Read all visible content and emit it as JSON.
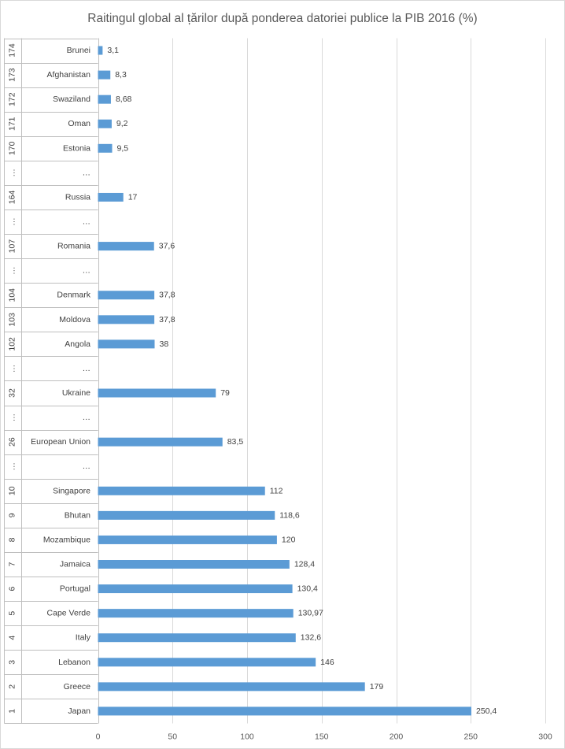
{
  "chart_data": {
    "type": "bar",
    "orientation": "horizontal",
    "title": "Raitingul global al țărilor după ponderea datoriei publice la PIB 2016 (%)",
    "xlim": [
      0,
      300
    ],
    "xticks": [
      0,
      50,
      100,
      150,
      200,
      250,
      300
    ],
    "grid": true,
    "ranks": [
      "174",
      "173",
      "172",
      "171",
      "170",
      "…",
      "164",
      "…",
      "107",
      "…",
      "104",
      "103",
      "102",
      "…",
      "32",
      "…",
      "26",
      "…",
      "10",
      "9",
      "8",
      "7",
      "6",
      "5",
      "4",
      "3",
      "2",
      "1"
    ],
    "categories": [
      "Brunei",
      "Afghanistan",
      "Swaziland",
      "Oman",
      "Estonia",
      "…",
      "Russia",
      "…",
      "Romania",
      "…",
      "Denmark",
      "Moldova",
      "Angola",
      "…",
      "Ukraine",
      "…",
      "European Union",
      "…",
      "Singapore",
      "Bhutan",
      "Mozambique",
      "Jamaica",
      "Portugal",
      "Cape Verde",
      "Italy",
      "Lebanon",
      "Greece",
      "Japan"
    ],
    "values": [
      3.1,
      8.3,
      8.68,
      9.2,
      9.5,
      null,
      17,
      null,
      37.6,
      null,
      37.8,
      37.8,
      38,
      null,
      79,
      null,
      83.5,
      null,
      112,
      118.6,
      120,
      128.4,
      130.4,
      130.97,
      132.6,
      146,
      179,
      250.4
    ],
    "value_labels": [
      "3,1",
      "8,3",
      "8,68",
      "9,2",
      "9,5",
      "",
      "17",
      "",
      "37,6",
      "",
      "37,8",
      "37,8",
      "38",
      "",
      "79",
      "",
      "83,5",
      "",
      "112",
      "118,6",
      "120",
      "128,4",
      "130,4",
      "130,97",
      "132,6",
      "146",
      "179",
      "250,4"
    ]
  },
  "colors": {
    "bar": "#5B9BD5",
    "grid": "#D9D9D9",
    "axis": "#BFBFBF",
    "border": "#D9D9D9"
  }
}
